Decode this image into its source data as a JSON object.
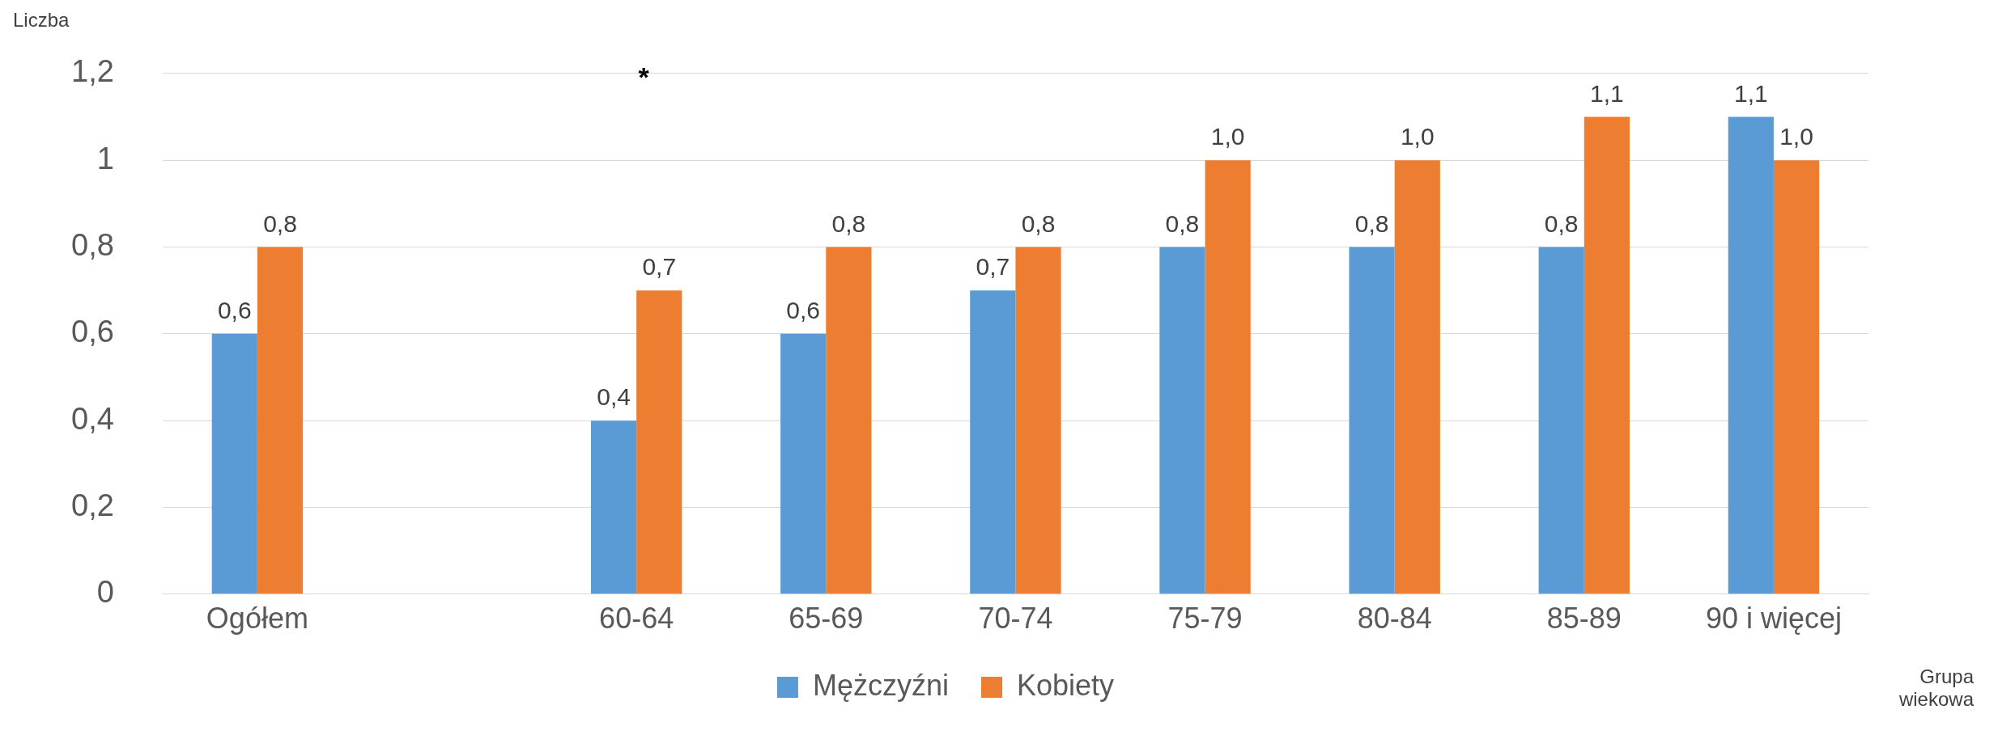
{
  "chart_data": {
    "type": "bar",
    "xlabel": "Grupa wiekowa",
    "ylabel": "Liczba",
    "categories": [
      "Ogółem",
      null,
      "60-64",
      "65-69",
      "70-74",
      "75-79",
      "80-84",
      "85-89",
      "90 i więcej"
    ],
    "series": [
      {
        "name": "Mężczyźni",
        "color": "#5b9bd5",
        "values": [
          0.6,
          null,
          0.4,
          0.6,
          0.7,
          0.8,
          0.8,
          0.8,
          1.1
        ],
        "value_labels": [
          "0,6",
          null,
          "0,4",
          "0,6",
          "0,7",
          "0,8",
          "0,8",
          "0,8",
          "1,1"
        ]
      },
      {
        "name": "Kobiety",
        "color": "#ed7d31",
        "values": [
          0.8,
          null,
          0.7,
          0.8,
          0.8,
          1.0,
          1.0,
          1.1,
          1.0
        ],
        "value_labels": [
          "0,8",
          null,
          "0,7",
          "0,8",
          "0,8",
          "1,0",
          "1,0",
          "1,1",
          "1,0"
        ]
      }
    ],
    "ylim": [
      0,
      1.2
    ],
    "yticks": [
      0,
      {
        "value": 0.2,
        "label": "0,2"
      },
      {
        "value": 0.4,
        "label": "0,4"
      },
      {
        "value": 0.6,
        "label": "0,6"
      },
      {
        "value": 0.8,
        "label": "0,8"
      },
      1,
      {
        "value": 1.2,
        "label": "1,2"
      }
    ],
    "grid": "y",
    "legend": "bottom",
    "annotations": [
      "*"
    ]
  }
}
